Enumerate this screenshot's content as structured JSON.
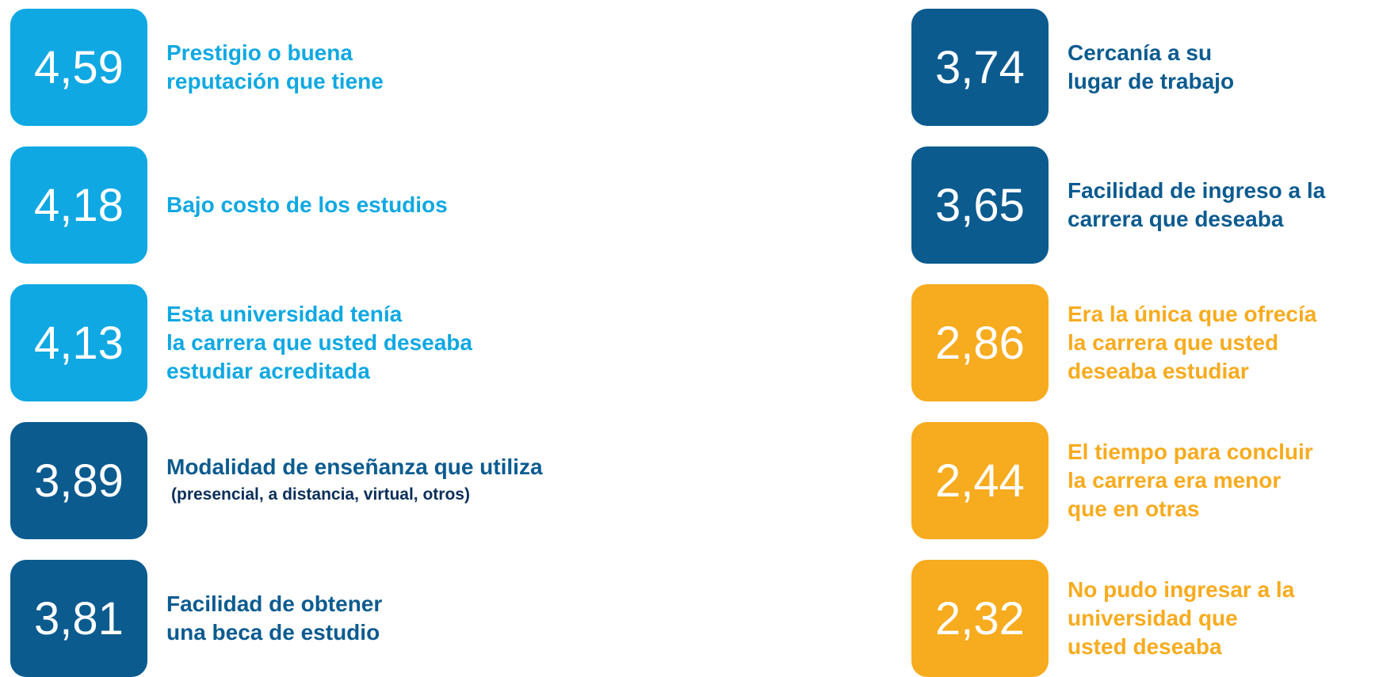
{
  "colors": {
    "light": "#0fa8e2",
    "dark": "#0b5b8f",
    "orange": "#f7ab1e"
  },
  "columns": [
    {
      "items": [
        {
          "value": "4,59",
          "color": "light",
          "lines": [
            "Prestigio o buena",
            "reputación que tiene"
          ]
        },
        {
          "value": "4,18",
          "color": "light",
          "lines": [
            "Bajo costo de los estudios"
          ]
        },
        {
          "value": "4,13",
          "color": "light",
          "lines": [
            "Esta universidad tenía",
            "la carrera que usted deseaba",
            "estudiar acreditada"
          ]
        },
        {
          "value": "3,89",
          "color": "dark",
          "lines": [
            "Modalidad de enseñanza que utiliza"
          ],
          "note": "(presencial, a distancia, virtual, otros)"
        },
        {
          "value": "3,81",
          "color": "dark",
          "lines": [
            "Facilidad  de obtener",
            "una beca de estudio"
          ]
        }
      ]
    },
    {
      "items": [
        {
          "value": "3,74",
          "color": "dark",
          "lines": [
            "Cercanía a su",
            "lugar de trabajo"
          ]
        },
        {
          "value": "3,65",
          "color": "dark",
          "lines": [
            "Facilidad de ingreso a la",
            "carrera que deseaba"
          ]
        },
        {
          "value": "2,86",
          "color": "orange",
          "lines": [
            "Era la única que ofrecía",
            "la carrera  que usted",
            "deseaba estudiar"
          ]
        },
        {
          "value": "2,44",
          "color": "orange",
          "lines": [
            "El tiempo para concluir",
            "la carrera era menor",
            "que en otras"
          ]
        },
        {
          "value": "2,32",
          "color": "orange",
          "lines": [
            "No pudo ingresar a la",
            "universidad que",
            "usted deseaba"
          ]
        }
      ]
    }
  ]
}
